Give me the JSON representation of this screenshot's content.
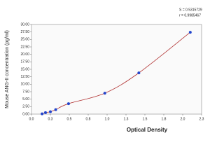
{
  "chart_data": {
    "type": "scatter",
    "x_label": "Optical Density",
    "y_label": "Mouse ANG-II concentration (pg/ml)",
    "annotations": [
      "S = 0.5315729",
      "r = 0.9985467"
    ],
    "x": [
      0.14,
      0.185,
      0.25,
      0.32,
      0.49,
      0.97,
      1.42,
      2.1
    ],
    "y": [
      0.1,
      0.5,
      0.8,
      1.5,
      3.5,
      7.0,
      13.8,
      27.4
    ],
    "point_color": "#2244cc",
    "curve_color": "#b03030",
    "xlim": [
      0,
      2.25
    ],
    "xticks": [
      {
        "value": 0,
        "label": "0.0"
      },
      {
        "value": 0.25,
        "label": "0.3"
      },
      {
        "value": 0.5,
        "label": "0.5"
      },
      {
        "value": 0.75,
        "label": "0.8"
      },
      {
        "value": 1,
        "label": "1.0"
      },
      {
        "value": 1.25,
        "label": "1.3"
      },
      {
        "value": 1.5,
        "label": "1.5"
      },
      {
        "value": 1.75,
        "label": "1.8"
      },
      {
        "value": 2,
        "label": "2.0"
      },
      {
        "value": 2.25,
        "label": "2.3"
      }
    ],
    "ylim": [
      0,
      30
    ],
    "yticks": [
      {
        "value": 0,
        "label": "0.00"
      },
      {
        "value": 2.5,
        "label": "2.50"
      },
      {
        "value": 5,
        "label": "5.00"
      },
      {
        "value": 7.5,
        "label": "7.50"
      },
      {
        "value": 10,
        "label": "10.00"
      },
      {
        "value": 12.5,
        "label": "12.50"
      },
      {
        "value": 15,
        "label": "15.00"
      },
      {
        "value": 17.5,
        "label": "17.50"
      },
      {
        "value": 20,
        "label": "20.00"
      },
      {
        "value": 22.5,
        "label": "22.50"
      },
      {
        "value": 25,
        "label": "25.00"
      },
      {
        "value": 27.5,
        "label": "27.50"
      },
      {
        "value": 30,
        "label": "30.00"
      }
    ]
  }
}
